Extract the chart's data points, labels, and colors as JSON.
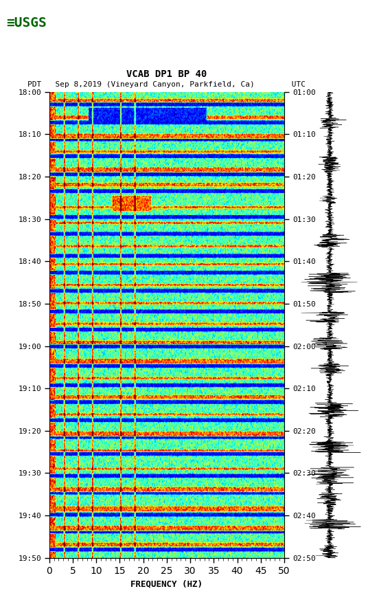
{
  "title_line1": "VCAB DP1 BP 40",
  "title_line2": "PDT   Sep 8,2019 (Vineyard Canyon, Parkfield, Ca)        UTC",
  "left_times": [
    "18:00",
    "18:10",
    "18:20",
    "18:30",
    "18:40",
    "18:50",
    "19:00",
    "19:10",
    "19:20",
    "19:30",
    "19:40",
    "19:50"
  ],
  "right_times": [
    "01:00",
    "01:10",
    "01:20",
    "01:30",
    "01:40",
    "01:50",
    "02:00",
    "02:10",
    "02:20",
    "02:30",
    "02:40",
    "02:50"
  ],
  "freq_min": 0,
  "freq_max": 50,
  "xlabel": "FREQUENCY (HZ)",
  "n_time": 360,
  "n_freq": 300,
  "background_color": "#ffffff",
  "spectrogram_cmap": "jet",
  "usgs_color": "#006400",
  "fig_width": 5.52,
  "fig_height": 8.92,
  "seed": 42
}
